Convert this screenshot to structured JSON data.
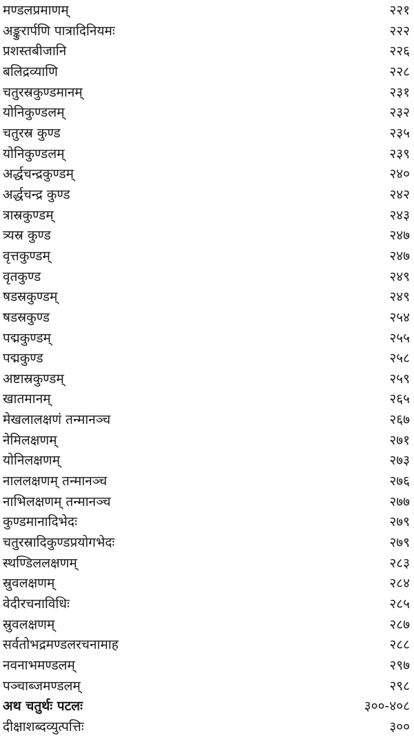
{
  "toc": {
    "entries": [
      {
        "title": "मण्डलप्रमाणम्",
        "page": "२२१"
      },
      {
        "title": "अङ्कुरार्पणि पात्रादिनियमः",
        "page": "२२२"
      },
      {
        "title": "प्रशस्तबीजानि",
        "page": "२२६"
      },
      {
        "title": "बलिद्रव्याणि",
        "page": "२२८"
      },
      {
        "title": "चतुरस्रकुण्डमानम्",
        "page": "२३१"
      },
      {
        "title": "योनिकुण्डलम्",
        "page": "२३२"
      },
      {
        "title": "चतुरस्र कुण्ड",
        "page": "२३५"
      },
      {
        "title": "योनिकुण्डलम्",
        "page": "२३९"
      },
      {
        "title": "अर्द्धचन्द्रकुण्डम्",
        "page": "२४०"
      },
      {
        "title": "अर्द्धचन्द्र कुण्ड",
        "page": "२४२"
      },
      {
        "title": "त्रास्रकुण्डम्",
        "page": "२४३"
      },
      {
        "title": "त्र्यस्र कुण्ड",
        "page": "२४७"
      },
      {
        "title": "वृत्तकुण्डम्",
        "page": "२४७"
      },
      {
        "title": "वृतकुण्ड",
        "page": "२४९"
      },
      {
        "title": "षडस्रकुण्डम्",
        "page": "२४९"
      },
      {
        "title": "षडस्रकुण्ड",
        "page": "२५४"
      },
      {
        "title": "पद्मकुण्डम्",
        "page": "२५५"
      },
      {
        "title": "पद्मकुण्ड",
        "page": "२५८"
      },
      {
        "title": "अष्टास्रकुण्डम्",
        "page": "२५९"
      },
      {
        "title": "खातमानम्",
        "page": "२६५"
      },
      {
        "title": "मेखलालक्षणं तन्मानञ्च",
        "page": "२६७"
      },
      {
        "title": "नेमिलक्षणम्",
        "page": "२७१"
      },
      {
        "title": "योनिलक्षणम्",
        "page": "२७३"
      },
      {
        "title": "नाललक्षणम् तन्मानञ्च",
        "page": "२७६"
      },
      {
        "title": "नाभिलक्षणम् तन्मानञ्च",
        "page": "२७७"
      },
      {
        "title": "कुण्डमानादिभेदः",
        "page": "२७९"
      },
      {
        "title": "चतुरस्रादिकुण्डप्रयोगभेदः",
        "page": "२७९"
      },
      {
        "title": "स्थण्डिललक्षणम्",
        "page": "२८३"
      },
      {
        "title": "स्रुवलक्षणम्",
        "page": "२८४"
      },
      {
        "title": "वेदीरचनाविधिः",
        "page": "२८५"
      },
      {
        "title": "स्रुवलक्षणम्",
        "page": "२८७"
      },
      {
        "title": "सर्वतोभद्रमण्डलरचनामाह",
        "page": "२८८"
      },
      {
        "title": "नवनाभमण्डलम्",
        "page": "२९७"
      },
      {
        "title": "पञ्चाब्जमण्डलम्",
        "page": "२९८"
      },
      {
        "title": "अथ चतुर्थः पटलः",
        "page": "३००-४०८",
        "heading": true
      },
      {
        "title": "दीक्षाशब्दव्युत्पत्तिः",
        "page": "३००"
      }
    ]
  }
}
